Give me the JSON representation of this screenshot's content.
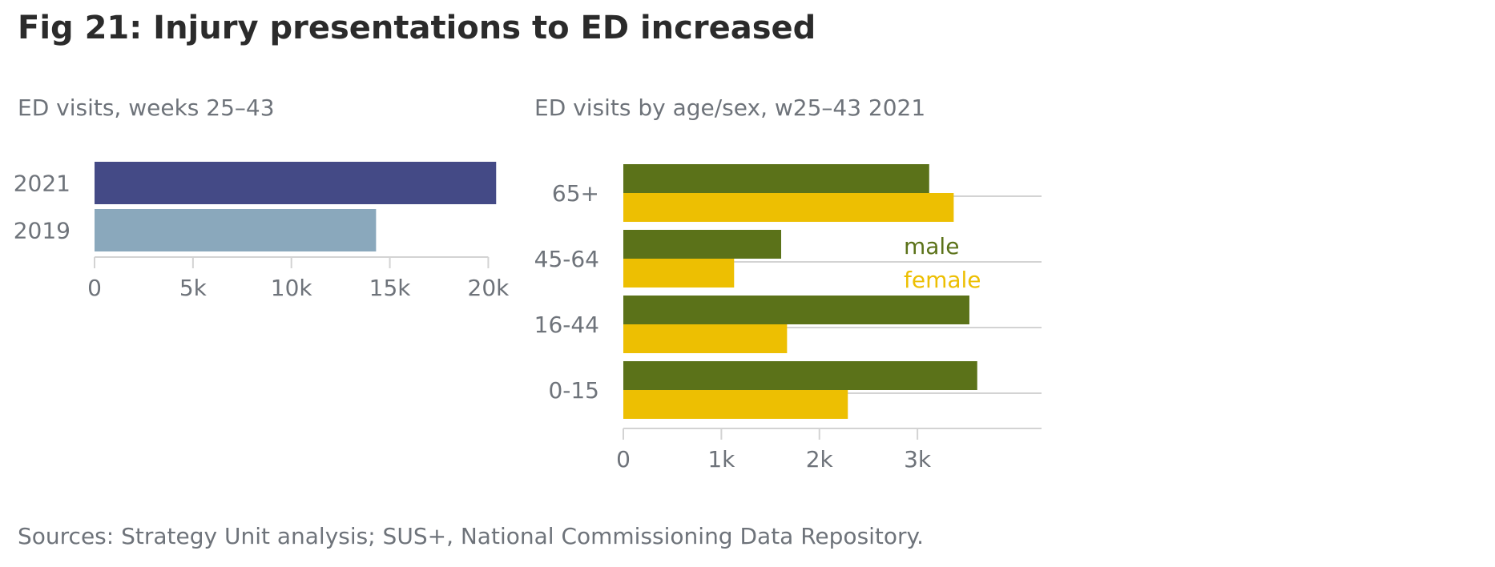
{
  "title": "Fig 21: Injury presentations to ED increased",
  "source": "Sources: Strategy Unit analysis; SUS+, National Commissioning Data Repository.",
  "colors": {
    "year_2021": "#444a86",
    "year_2019": "#8aa8bc",
    "male": "#5b7219",
    "female": "#edbf02",
    "axis": "#d3d3d3",
    "tick_text": "#6e737a"
  },
  "chart_data": [
    {
      "type": "bar",
      "orientation": "horizontal",
      "title": "ED visits, weeks 25–43",
      "categories": [
        "2021",
        "2019"
      ],
      "values": [
        20400,
        14300
      ],
      "xlim": [
        0,
        21000
      ],
      "xticks": [
        0,
        5000,
        10000,
        15000,
        20000
      ],
      "xtick_labels": [
        "0",
        "5k",
        "10k",
        "15k",
        "20k"
      ],
      "grid": false
    },
    {
      "type": "bar",
      "orientation": "horizontal",
      "title": "ED visits by age/sex, w25–43 2021",
      "categories": [
        "65+",
        "45-64",
        "16-44",
        "0-15"
      ],
      "series": [
        {
          "name": "male",
          "values": [
            3120,
            1610,
            3530,
            3610
          ]
        },
        {
          "name": "female",
          "values": [
            3370,
            1130,
            1670,
            2290
          ]
        }
      ],
      "xlim": [
        0,
        3800
      ],
      "xticks": [
        0,
        1000,
        2000,
        3000
      ],
      "xtick_labels": [
        "0",
        "1k",
        "2k",
        "3k"
      ],
      "legend": "inside, right of 45-64",
      "grid": true
    }
  ]
}
